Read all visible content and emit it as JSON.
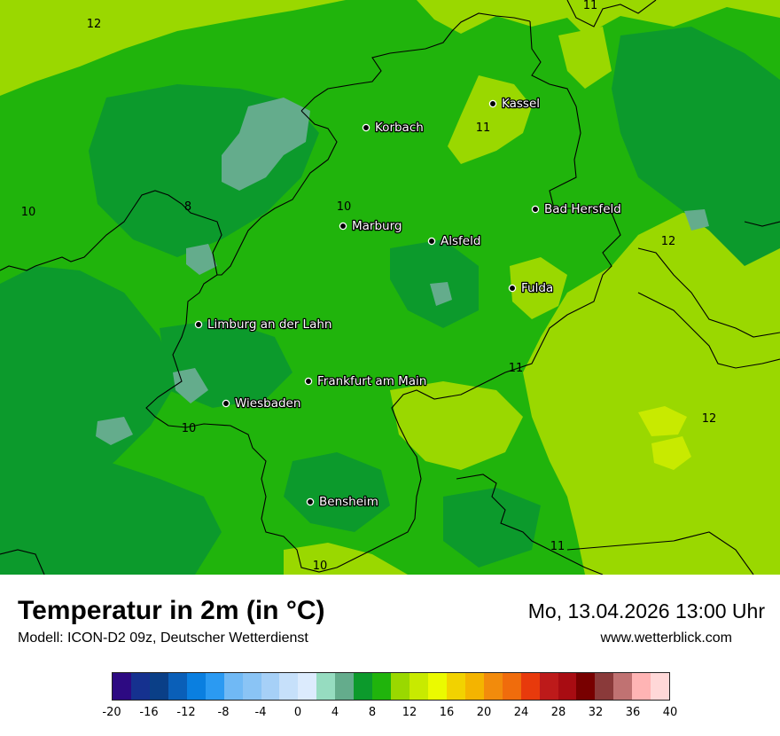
{
  "header": {
    "title": "Temperatur in 2m (in °C)",
    "subtitle": "Modell: ICON-D2 09z, Deutscher Wetterdienst",
    "datetime": "Mo, 13.04.2026 13:00 Uhr",
    "website": "www.wetterblick.com"
  },
  "map": {
    "cities": [
      {
        "name": "Kassel"
      },
      {
        "name": "Korbach"
      },
      {
        "name": "Bad Hersfeld"
      },
      {
        "name": "Marburg"
      },
      {
        "name": "Alsfeld"
      },
      {
        "name": "Fulda"
      },
      {
        "name": "Limburg an der Lahn"
      },
      {
        "name": "Frankfurt am Main"
      },
      {
        "name": "Wiesbaden"
      },
      {
        "name": "Bensheim"
      }
    ],
    "isotherm_labels": [
      {
        "text": "12"
      },
      {
        "text": "11"
      },
      {
        "text": "11"
      },
      {
        "text": "10"
      },
      {
        "text": "8"
      },
      {
        "text": "10"
      },
      {
        "text": "12"
      },
      {
        "text": "11"
      },
      {
        "text": "12"
      },
      {
        "text": "10"
      },
      {
        "text": "11"
      },
      {
        "text": "10"
      }
    ]
  },
  "legend": {
    "unit": "°C",
    "min": -20,
    "max": 40,
    "step": 2,
    "colors": [
      "#2d0a82",
      "#15318f",
      "#0a3f87",
      "#0a5fb8",
      "#0a7fe0",
      "#2b9af2",
      "#70b9f5",
      "#8ac4f5",
      "#a6d0f7",
      "#c6e0fa",
      "#dcebfd",
      "#96dcc0",
      "#64ac8c",
      "#0c9a2c",
      "#20b40c",
      "#9ad800",
      "#c8ea00",
      "#ebfa00",
      "#f2d200",
      "#f4b400",
      "#f28b0c",
      "#f06c0c",
      "#e83a0c",
      "#bd1a1a",
      "#a80c12",
      "#780000",
      "#8a3a3a",
      "#c07272",
      "#ffb4b4",
      "#ffd8d8"
    ],
    "tick_labels": [
      "-20",
      "-16",
      "-12",
      "-8",
      "-4",
      "0",
      "4",
      "8",
      "12",
      "16",
      "20",
      "24",
      "28",
      "32",
      "36",
      "40"
    ],
    "tick_values": [
      -20,
      -16,
      -12,
      -8,
      -4,
      0,
      4,
      8,
      12,
      16,
      20,
      24,
      28,
      32,
      36,
      40
    ]
  }
}
